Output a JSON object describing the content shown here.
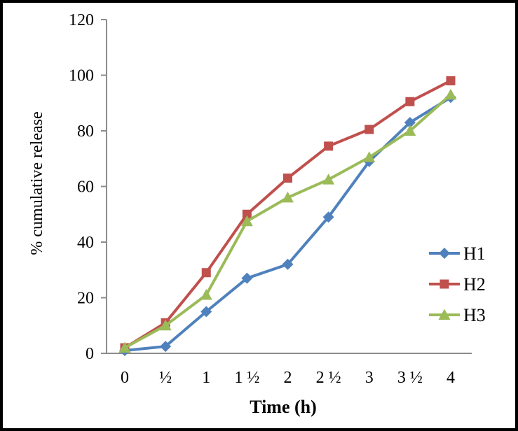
{
  "chart_data": {
    "type": "line",
    "xlabel": "Time (h)",
    "ylabel": "% cumulative release",
    "x_tick_labels": [
      "0",
      "½",
      "1",
      "1 ½",
      "2",
      "2 ½",
      "3",
      "3 ½",
      "4"
    ],
    "x_values": [
      0,
      0.5,
      1,
      1.5,
      2,
      2.5,
      3,
      3.5,
      4
    ],
    "y_ticks": [
      0,
      20,
      40,
      60,
      80,
      100,
      120
    ],
    "ylim": [
      0,
      120
    ],
    "grid": false,
    "legend_position": "right-middle",
    "axis_color": "#8C8C8C",
    "series": [
      {
        "name": "H1",
        "color": "#4F81BD",
        "marker": "diamond",
        "values": [
          1,
          2.5,
          15,
          27,
          32,
          49,
          69,
          83,
          92
        ]
      },
      {
        "name": "H2",
        "color": "#C0504D",
        "marker": "square",
        "values": [
          2,
          11,
          29,
          50,
          63,
          74.5,
          80.5,
          90.5,
          98
        ]
      },
      {
        "name": "H3",
        "color": "#9BBB59",
        "marker": "triangle",
        "values": [
          2,
          10,
          21,
          47.5,
          56,
          62.5,
          70.5,
          80,
          93
        ]
      }
    ]
  }
}
